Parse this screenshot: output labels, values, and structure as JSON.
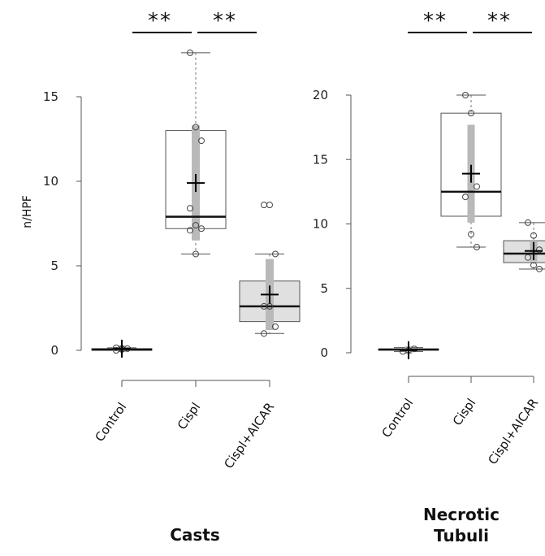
{
  "chart_data": [
    {
      "type": "box",
      "title": "Casts",
      "ylabel": "n/HPF",
      "categories": [
        "Control",
        "Cispl",
        "Cispl+AICAR"
      ],
      "ylim": [
        0,
        18
      ],
      "yticks": [
        0,
        5,
        10,
        15
      ],
      "significance": [
        "**",
        "**"
      ],
      "boxes": [
        {
          "name": "Control",
          "min": 0,
          "q1": 0,
          "median": 0.05,
          "q3": 0.1,
          "max": 0.15,
          "mean": 0.1,
          "sd": 0.2,
          "points": [
            0,
            0.05,
            0.1,
            0.15,
            0.1
          ],
          "fill": "#ffffff"
        },
        {
          "name": "Cispl",
          "min": 5.7,
          "q1": 7.2,
          "median": 7.9,
          "q3": 13.0,
          "max": 17.6,
          "mean": 9.9,
          "sd": 3.4,
          "points": [
            17.6,
            13.2,
            12.4,
            8.4,
            7.4,
            7.2,
            7.1,
            5.7
          ],
          "fill": "#ffffff"
        },
        {
          "name": "Cispl+AICAR",
          "min": 1.0,
          "q1": 1.7,
          "median": 2.6,
          "q3": 4.1,
          "max": 5.7,
          "mean": 3.3,
          "sd": 2.1,
          "points": [
            8.6,
            8.6,
            5.7,
            2.6,
            2.6,
            1.4,
            1.0
          ],
          "fill": "#e0e0e0"
        }
      ]
    },
    {
      "type": "box",
      "title": "Necrotic Tubuli",
      "ylabel": "",
      "categories": [
        "Control",
        "Cispl",
        "Cispl+AICAR"
      ],
      "ylim": [
        0,
        20
      ],
      "yticks": [
        0,
        5,
        10,
        15,
        20
      ],
      "significance": [
        "**",
        "**"
      ],
      "boxes": [
        {
          "name": "Control",
          "min": 0.1,
          "q1": 0.2,
          "median": 0.25,
          "q3": 0.3,
          "max": 0.4,
          "mean": 0.2,
          "sd": 0.3,
          "points": [
            0.1,
            0.2,
            0.3
          ],
          "fill": "#ffffff"
        },
        {
          "name": "Cispl",
          "min": 8.2,
          "q1": 10.6,
          "median": 12.5,
          "q3": 18.6,
          "max": 20.0,
          "mean": 13.9,
          "sd": 3.8,
          "points": [
            20.0,
            18.6,
            12.9,
            12.1,
            9.2,
            8.2
          ],
          "fill": "#ffffff"
        },
        {
          "name": "Cispl+AICAR",
          "min": 6.5,
          "q1": 7.0,
          "median": 7.7,
          "q3": 8.7,
          "max": 10.1,
          "mean": 7.9,
          "sd": 0.8,
          "points": [
            10.1,
            9.1,
            8.0,
            7.4,
            6.8,
            6.5
          ],
          "fill": "#e0e0e0"
        }
      ]
    }
  ]
}
